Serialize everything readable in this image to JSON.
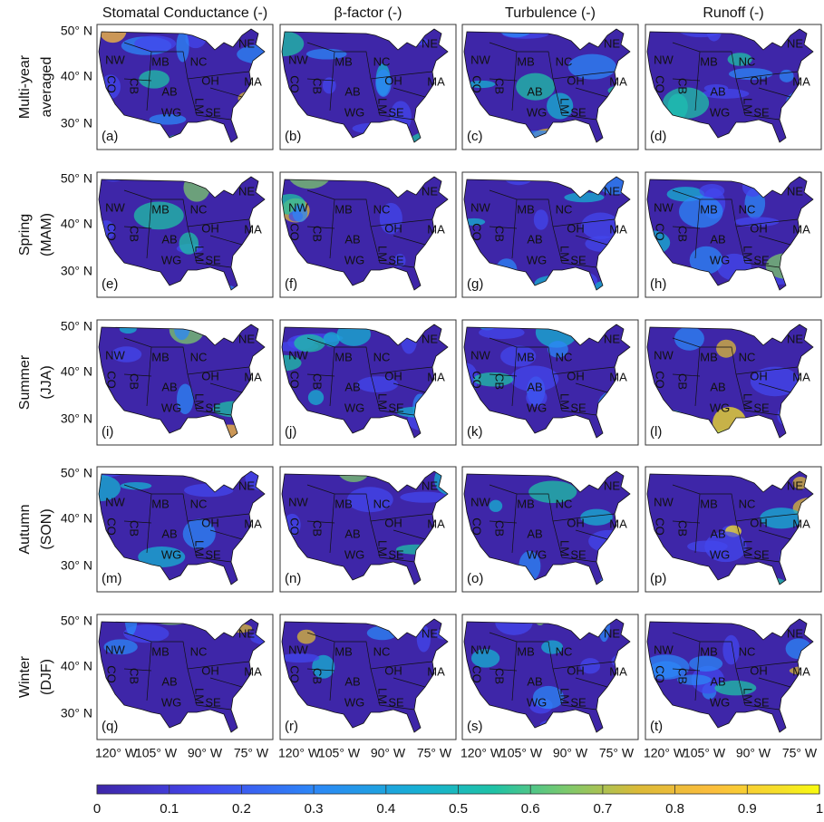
{
  "columns": [
    "Stomatal Conductance (-)",
    "β-factor (-)",
    "Turbulence (-)",
    "Runoff (-)"
  ],
  "rows": [
    [
      "Multi-year",
      "averaged"
    ],
    [
      "Spring",
      "(MAM)"
    ],
    [
      "Summer",
      "(JJA)"
    ],
    [
      "Autumn",
      "(SON)"
    ],
    [
      "Winter",
      "(DJF)"
    ]
  ],
  "panel_labels": [
    "(a)",
    "(b)",
    "(c)",
    "(d)",
    "(e)",
    "(f)",
    "(g)",
    "(h)",
    "(i)",
    "(j)",
    "(k)",
    "(l)",
    "(m)",
    "(n)",
    "(o)",
    "(p)",
    "(q)",
    "(r)",
    "(s)",
    "(t)"
  ],
  "regions": [
    "NE",
    "NW",
    "MB",
    "NC",
    "OH",
    "MA",
    "CO",
    "CB",
    "AB",
    "WG",
    "SE",
    "LM"
  ],
  "lat_ticks": [
    "50° N",
    "40° N",
    "30° N"
  ],
  "lon_ticks": [
    "120° W",
    "105° W",
    "90° W",
    "75° W"
  ],
  "colorbar": {
    "lim": [
      0,
      1
    ],
    "ticks": [
      0,
      0.1,
      0.2,
      0.3,
      0.4,
      0.5,
      0.6,
      0.7,
      0.8,
      0.9,
      1
    ]
  }
}
